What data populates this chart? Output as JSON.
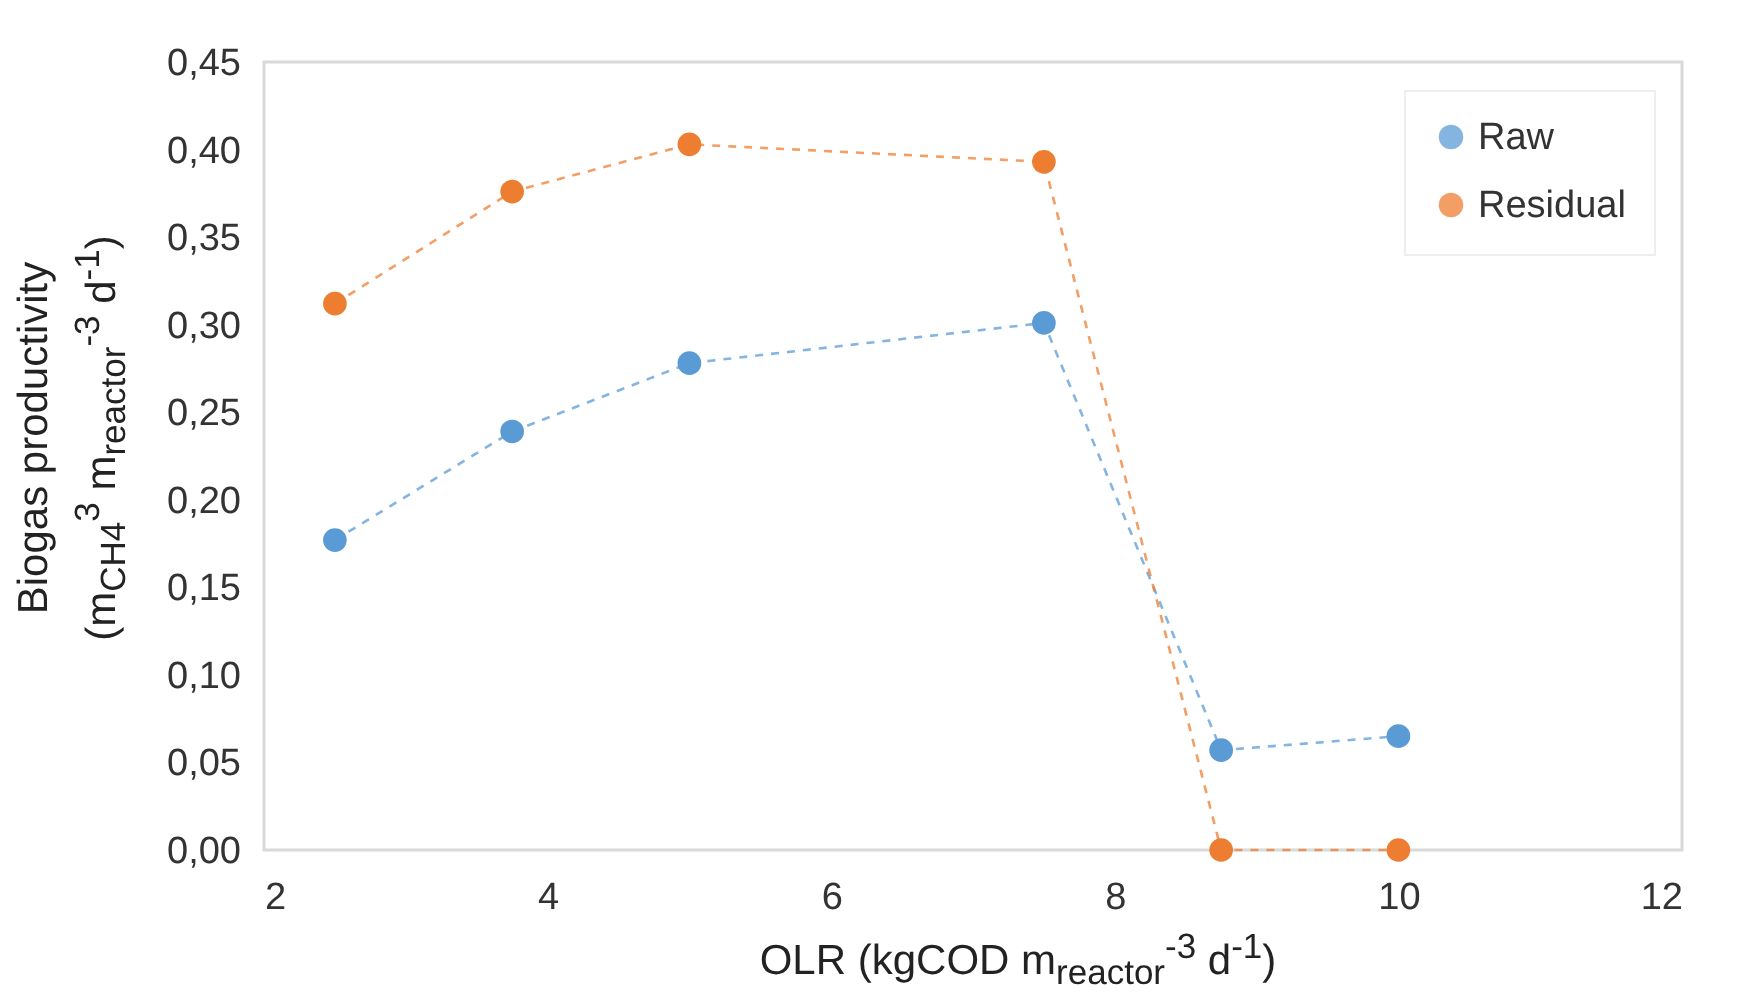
{
  "chart_data": {
    "type": "line",
    "xlabel": "OLR (kgCOD m$_{reactor}$$^{-3}$ d$^{-1}$)",
    "ylabel": "Biogas productivity\n(m$_{CH4}$$^{3}$ m$_{reactor}$$^{-3}$ d$^{-1}$)",
    "x": [
      2.5,
      3.75,
      5,
      7.5,
      8.75,
      10
    ],
    "series": [
      {
        "name": "Raw",
        "color": "#5b9bd5",
        "values": [
          0.177,
          0.239,
          0.278,
          0.301,
          0.057,
          0.065
        ]
      },
      {
        "name": "Residual",
        "color": "#ed7d31",
        "values": [
          0.312,
          0.376,
          0.403,
          0.393,
          0,
          0
        ]
      }
    ],
    "xlim": [
      2,
      12
    ],
    "xticks": [
      2,
      4,
      6,
      8,
      10,
      12
    ],
    "ylim": [
      0,
      0.45
    ],
    "yticks": [
      {
        "value": 0,
        "label": "0,00"
      },
      {
        "value": 0.05,
        "label": "0,05"
      },
      {
        "value": 0.1,
        "label": "0,10"
      },
      {
        "value": 0.15,
        "label": "0,15"
      },
      {
        "value": 0.2,
        "label": "0,20"
      },
      {
        "value": 0.25,
        "label": "0,25"
      },
      {
        "value": 0.3,
        "label": "0,30"
      },
      {
        "value": 0.35,
        "label": "0,35"
      },
      {
        "value": 0.4,
        "label": "0,40"
      },
      {
        "value": 0.45,
        "label": "0,45"
      }
    ],
    "legend": "top right",
    "marker": "circle",
    "line_style": "dashed"
  }
}
